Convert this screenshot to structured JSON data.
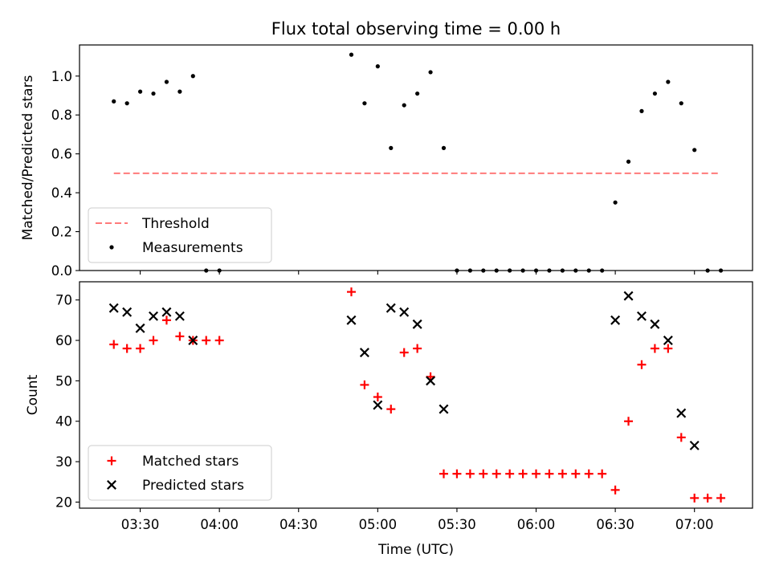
{
  "chart_data": {
    "title": "Flux total observing time = 0.00 h",
    "panels": [
      {
        "type": "scatter",
        "ylabel": "Matched/Predicted stars",
        "ylim": [
          0,
          1.16
        ],
        "yticks": [
          0.0,
          0.2,
          0.4,
          0.6,
          0.8,
          1.0
        ],
        "ytick_labels": [
          "0.0",
          "0.2",
          "0.4",
          "0.6",
          "0.8",
          "1.0"
        ],
        "legend_position": "lower-left",
        "threshold": {
          "name": "Threshold",
          "value": 0.5,
          "x_start": "03:20",
          "x_end": "07:10",
          "color": "#ff7a7a"
        },
        "series": [
          {
            "name": "Measurements",
            "marker": "dot",
            "color": "#000000",
            "x": [
              "03:20",
              "03:25",
              "03:30",
              "03:35",
              "03:40",
              "03:45",
              "03:50",
              "03:55",
              "04:00",
              "04:50",
              "04:55",
              "05:00",
              "05:05",
              "05:10",
              "05:15",
              "05:20",
              "05:25",
              "05:30",
              "05:35",
              "05:40",
              "05:45",
              "05:50",
              "05:55",
              "06:00",
              "06:05",
              "06:10",
              "06:15",
              "06:20",
              "06:25",
              "06:30",
              "06:35",
              "06:40",
              "06:45",
              "06:50",
              "06:55",
              "07:00",
              "07:05",
              "07:10"
            ],
            "y": [
              0.87,
              0.86,
              0.92,
              0.91,
              0.97,
              0.92,
              1.0,
              0.0,
              0.0,
              1.11,
              0.86,
              1.05,
              0.63,
              0.85,
              0.91,
              1.02,
              0.63,
              0.0,
              0.0,
              0.0,
              0.0,
              0.0,
              0.0,
              0.0,
              0.0,
              0.0,
              0.0,
              0.0,
              0.0,
              0.35,
              0.56,
              0.82,
              0.91,
              0.97,
              0.86,
              0.62,
              0.0,
              0.0
            ]
          }
        ]
      },
      {
        "type": "scatter",
        "ylabel": "Count",
        "xlabel": "Time (UTC)",
        "ylim": [
          18.5,
          74.5
        ],
        "yticks": [
          20,
          30,
          40,
          50,
          60,
          70
        ],
        "ytick_labels": [
          "20",
          "30",
          "40",
          "50",
          "60",
          "70"
        ],
        "legend_position": "lower-left",
        "series": [
          {
            "name": "Matched stars",
            "marker": "plus",
            "color": "#ff0000",
            "x": [
              "03:20",
              "03:25",
              "03:30",
              "03:35",
              "03:40",
              "03:45",
              "03:50",
              "03:55",
              "04:00",
              "04:50",
              "04:55",
              "05:00",
              "05:05",
              "05:10",
              "05:15",
              "05:20",
              "05:25",
              "05:30",
              "05:35",
              "05:40",
              "05:45",
              "05:50",
              "05:55",
              "06:00",
              "06:05",
              "06:10",
              "06:15",
              "06:20",
              "06:25",
              "06:30",
              "06:35",
              "06:40",
              "06:45",
              "06:50",
              "06:55",
              "07:00",
              "07:05",
              "07:10"
            ],
            "y": [
              59,
              58,
              58,
              60,
              65,
              61,
              60,
              60,
              60,
              72,
              49,
              46,
              43,
              57,
              58,
              51,
              27,
              27,
              27,
              27,
              27,
              27,
              27,
              27,
              27,
              27,
              27,
              27,
              27,
              23,
              40,
              54,
              58,
              58,
              36,
              21,
              21,
              21
            ]
          },
          {
            "name": "Predicted stars",
            "marker": "x",
            "color": "#000000",
            "x": [
              "03:20",
              "03:25",
              "03:30",
              "03:35",
              "03:40",
              "03:45",
              "03:50",
              "04:50",
              "04:55",
              "05:00",
              "05:05",
              "05:10",
              "05:15",
              "05:20",
              "05:25",
              "06:30",
              "06:35",
              "06:40",
              "06:45",
              "06:50",
              "06:55",
              "07:00"
            ],
            "y": [
              68,
              67,
              63,
              66,
              67,
              66,
              60,
              65,
              57,
              44,
              68,
              67,
              64,
              50,
              43,
              65,
              71,
              66,
              64,
              60,
              42,
              34
            ]
          }
        ]
      }
    ],
    "x_axis": {
      "label": "Time (UTC)",
      "range": [
        "03:07",
        "07:22"
      ],
      "ticks": [
        "03:30",
        "04:00",
        "04:30",
        "05:00",
        "05:30",
        "06:00",
        "06:30",
        "07:00"
      ]
    }
  }
}
